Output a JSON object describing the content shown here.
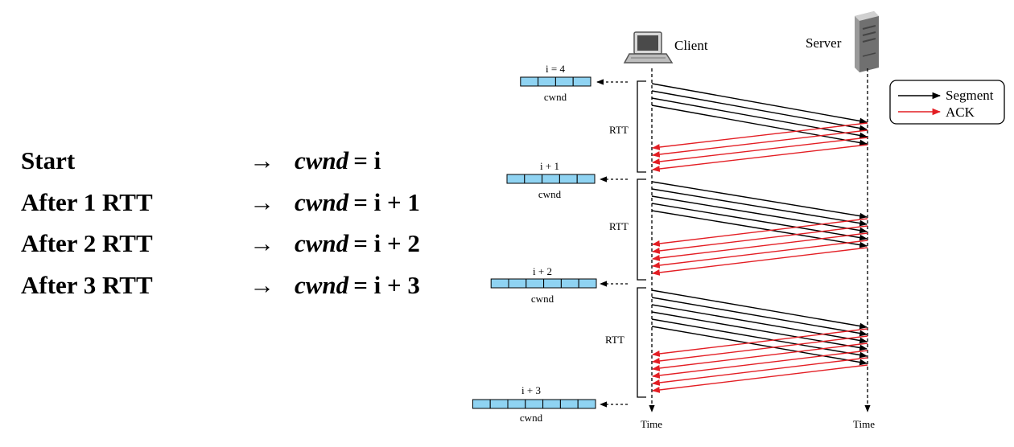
{
  "left_table": {
    "rows": [
      {
        "label": "Start",
        "arrow": "→",
        "var": "cwnd",
        "eq": "= i"
      },
      {
        "label": "After 1 RTT",
        "arrow": "→",
        "var": "cwnd",
        "eq": "= i + 1"
      },
      {
        "label": "After 2 RTT",
        "arrow": "→",
        "var": "cwnd",
        "eq": "= i + 2"
      },
      {
        "label": "After 3 RTT",
        "arrow": "→",
        "var": "cwnd",
        "eq": "= i + 3"
      }
    ]
  },
  "diagram": {
    "client_label": "Client",
    "server_label": "Server",
    "time_label": "Time",
    "rtt_label": "RTT",
    "cwnd_label": "cwnd",
    "windows": [
      {
        "label": "i = 4",
        "cells": 4
      },
      {
        "label": "i + 1",
        "cells": 5
      },
      {
        "label": "i + 2",
        "cells": 6
      },
      {
        "label": "i + 3",
        "cells": 7
      }
    ],
    "legend": {
      "segment": "Segment",
      "ack": "ACK"
    },
    "colors": {
      "segment": "#000000",
      "ack": "#e31e24",
      "cwnd_fill": "#8fd3f2"
    }
  }
}
